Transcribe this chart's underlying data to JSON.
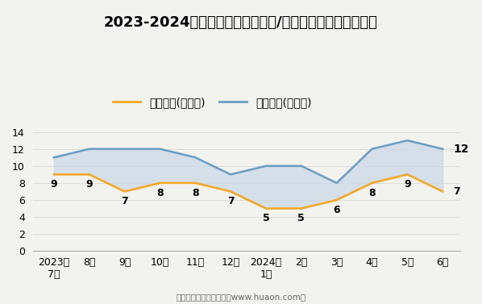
{
  "title": "2023-2024年昆明市（境内目的地/货源地）进、出口额统计",
  "x_labels": [
    "2023年\n7月",
    "8月",
    "9月",
    "10月",
    "11月",
    "12月",
    "2024年\n1月",
    "2月",
    "3月",
    "4月",
    "5月",
    "6月"
  ],
  "export_values": [
    9,
    9,
    7,
    8,
    8,
    7,
    5,
    5,
    6,
    8,
    9,
    7
  ],
  "import_values": [
    11,
    12,
    12,
    12,
    11,
    9,
    10,
    10,
    8,
    12,
    13,
    12
  ],
  "export_label": "出口总额(亿美元)",
  "import_label": "进口总额(亿美元)",
  "export_color": "#F5A623",
  "import_color": "#6B9DC2",
  "fill_color": "#C8D8E8",
  "fill_alpha": 0.7,
  "ylim": [
    0,
    14
  ],
  "yticks": [
    0,
    2,
    4,
    6,
    8,
    10,
    12,
    14
  ],
  "footer": "制图：华经产业研究院（www.huaon.com）",
  "bg_color": "#F2F2EE",
  "title_fontsize": 13,
  "legend_fontsize": 10,
  "tick_fontsize": 9,
  "annotation_fontsize": 9,
  "linewidth": 1.8
}
